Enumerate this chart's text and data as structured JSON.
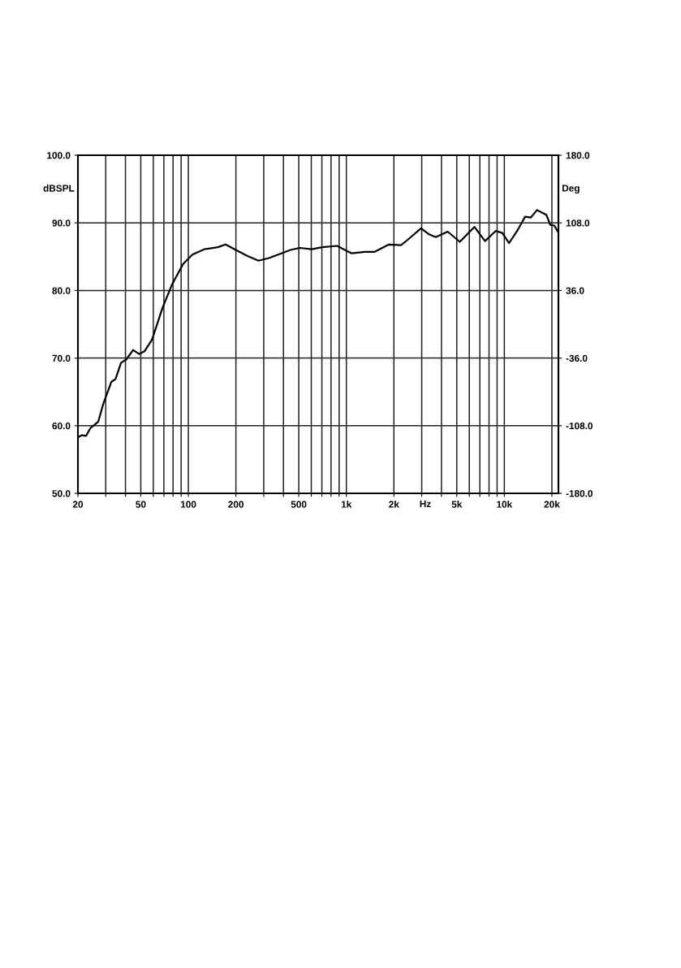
{
  "chart_data": {
    "type": "line",
    "xlabel": "Hz",
    "ylabel": "dBSPL",
    "y2label": "Deg",
    "log": "x",
    "grid": true,
    "legend": false,
    "marker": "none",
    "line_style": "solid",
    "x": [
      20,
      21.2,
      22.5,
      24.1,
      26.9,
      29,
      32.6,
      34.6,
      37.5,
      40.5,
      44.7,
      48.9,
      52.7,
      58.8,
      62.4,
      68.8,
      78.9,
      92.5,
      106,
      126,
      154,
      172,
      203,
      237,
      278,
      324,
      379,
      443,
      508,
      603,
      705,
      873,
      962,
      1081,
      1313,
      1504,
      1658,
      1864,
      2219,
      2446,
      2971,
      3338,
      3679,
      4381,
      5223,
      6465,
      7547,
      8812,
      9715,
      10710,
      12050,
      13520,
      14730,
      16100,
      18430,
      19540,
      20700,
      21940
    ],
    "series": [
      {
        "color": "#000000",
        "values": [
          58.3,
          58.6,
          58.5,
          59.7,
          60.6,
          63.3,
          66.5,
          66.9,
          69.3,
          69.8,
          71.2,
          70.6,
          71.0,
          72.7,
          74.5,
          77.5,
          80.9,
          83.9,
          85.3,
          86.1,
          86.4,
          86.8,
          85.9,
          85.1,
          84.4,
          84.8,
          85.4,
          86.0,
          86.3,
          86.1,
          86.4,
          86.6,
          86.1,
          85.5,
          85.7,
          85.7,
          86.2,
          86.8,
          86.7,
          87.5,
          89.2,
          88.3,
          87.9,
          88.7,
          87.2,
          89.4,
          87.3,
          88.8,
          88.5,
          87.0,
          88.8,
          90.9,
          90.8,
          91.9,
          91.2,
          89.7,
          89.6,
          88.6
        ]
      }
    ],
    "xlim": [
      20,
      22000
    ],
    "ylim": [
      50,
      100
    ],
    "y2lim": [
      -180,
      180
    ],
    "xticks": [
      {
        "value": 20,
        "label": "20"
      },
      {
        "value": 30,
        "label": null
      },
      {
        "value": 40,
        "label": null
      },
      {
        "value": 50,
        "label": "50"
      },
      {
        "value": 60,
        "label": null
      },
      {
        "value": 70,
        "label": null
      },
      {
        "value": 80,
        "label": null
      },
      {
        "value": 90,
        "label": null
      },
      {
        "value": 100,
        "label": "100"
      },
      {
        "value": 200,
        "label": "200"
      },
      {
        "value": 300,
        "label": null
      },
      {
        "value": 400,
        "label": null
      },
      {
        "value": 500,
        "label": "500"
      },
      {
        "value": 600,
        "label": null
      },
      {
        "value": 700,
        "label": null
      },
      {
        "value": 800,
        "label": null
      },
      {
        "value": 900,
        "label": null
      },
      {
        "value": 1000,
        "label": "1k"
      },
      {
        "value": 2000,
        "label": "2k"
      },
      {
        "value": 3000,
        "label": null
      },
      {
        "value": 4000,
        "label": null
      },
      {
        "value": 5000,
        "label": "5k"
      },
      {
        "value": 6000,
        "label": null
      },
      {
        "value": 7000,
        "label": null
      },
      {
        "value": 8000,
        "label": null
      },
      {
        "value": 9000,
        "label": null
      },
      {
        "value": 10000,
        "label": "10k"
      },
      {
        "value": 20000,
        "label": "20k"
      }
    ],
    "yticks": [
      {
        "value": 50,
        "label": "50.0"
      },
      {
        "value": 60,
        "label": "60.0"
      },
      {
        "value": 70,
        "label": "70.0"
      },
      {
        "value": 80,
        "label": "80.0"
      },
      {
        "value": 90,
        "label": "90.0"
      },
      {
        "value": 100,
        "label": "100.0"
      }
    ],
    "y2ticks": [
      {
        "value": -180,
        "label": "-180.0"
      },
      {
        "value": -108,
        "label": "-108.0"
      },
      {
        "value": -36,
        "label": "-36.0"
      },
      {
        "value": 36,
        "label": "36.0"
      },
      {
        "value": 108,
        "label": "108.0"
      },
      {
        "value": 180,
        "label": "180.0"
      }
    ]
  }
}
